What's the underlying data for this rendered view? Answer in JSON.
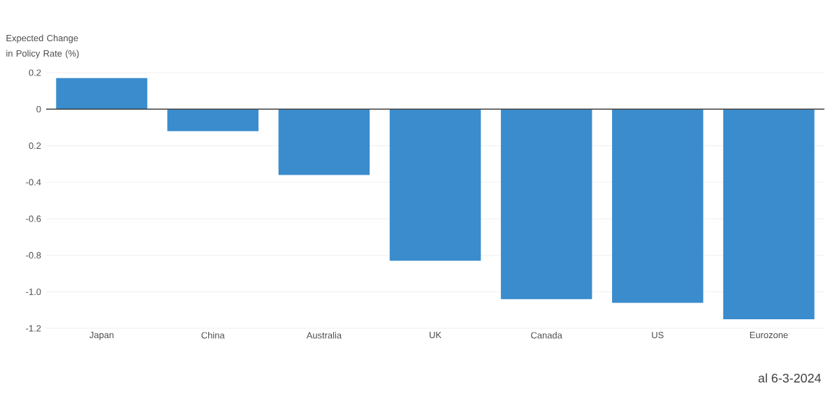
{
  "chart_data": {
    "type": "bar",
    "ylabel": "Expected Change in Policy Rate (%)",
    "categories": [
      "Japan",
      "China",
      "Australia",
      "UK",
      "Canada",
      "US",
      "Eurozone"
    ],
    "values": [
      0.17,
      -0.12,
      -0.36,
      -0.83,
      -1.04,
      -1.06,
      -1.15
    ],
    "color": "#3a8ccd",
    "ylim": [
      -1.2,
      0.2
    ],
    "yticks": [
      0.2,
      0,
      {
        "value": -0.2,
        "label": "0.2"
      },
      -0.4,
      -0.6,
      -0.8,
      {
        "value": -1.0,
        "label": "-1.0"
      },
      -1.2
    ],
    "grid": "y",
    "annotations": [
      "al 6-3-2024"
    ]
  }
}
